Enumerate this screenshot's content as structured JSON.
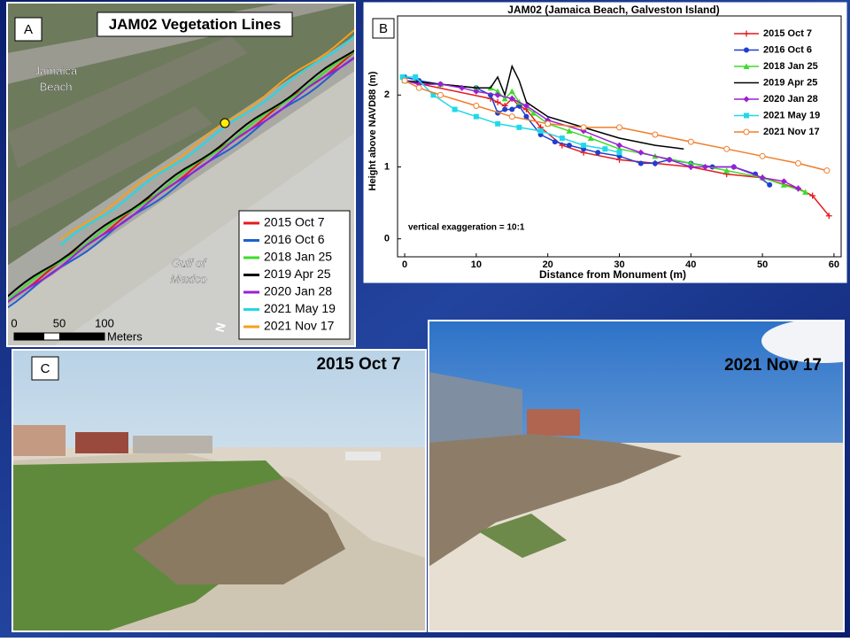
{
  "map": {
    "panel_label": "A",
    "title": "JAM02 Vegetation Lines",
    "place_label": [
      "Jamaica",
      "Beach"
    ],
    "sea_label": [
      "Gulf of",
      "Mexico"
    ],
    "scale_labels": [
      "0",
      "50",
      "100"
    ],
    "scale_unit": "Meters",
    "north": "N",
    "legend": [
      {
        "label": "2015 Oct 7",
        "color": "#e41a1c"
      },
      {
        "label": "2016 Oct 6",
        "color": "#1f5fd1"
      },
      {
        "label": "2018 Jan 25",
        "color": "#3ddc2a"
      },
      {
        "label": "2019 Apr 25",
        "color": "#000000"
      },
      {
        "label": "2020 Jan 28",
        "color": "#9b1fd6"
      },
      {
        "label": "2021 May 19",
        "color": "#22d8e8"
      },
      {
        "label": "2021 Nov 17",
        "color": "#f5a11a"
      }
    ]
  },
  "chart_data": {
    "type": "line",
    "panel_label": "B",
    "title": "JAM02 (Jamaica Beach, Galveston Island)",
    "x_label": "Distance from Monument (m)",
    "y_label": "Height above NAVD88 (m)",
    "annotation": "vertical exaggeration = 10:1",
    "xlim": [
      -1,
      61
    ],
    "ylim": [
      -0.25,
      3.1
    ],
    "xticks": [
      0,
      10,
      20,
      30,
      40,
      50,
      60
    ],
    "yticks": [
      0,
      1,
      2
    ],
    "series": [
      {
        "name": "2015 Oct 7",
        "color": "#e41a1c",
        "marker": "plus",
        "x": [
          0,
          12,
          13,
          14,
          15,
          16,
          17,
          19,
          22,
          25,
          30,
          35,
          40,
          45,
          50,
          55,
          57,
          59.3
        ],
        "values": [
          2.2,
          1.95,
          1.9,
          1.85,
          1.95,
          1.85,
          1.8,
          1.55,
          1.3,
          1.2,
          1.1,
          1.05,
          1.0,
          0.9,
          0.85,
          0.7,
          0.6,
          0.32
        ]
      },
      {
        "name": "2016 Oct 6",
        "color": "#1f3fd1",
        "marker": "circle",
        "x": [
          0,
          2,
          5,
          10,
          12,
          13,
          14,
          15,
          16,
          17,
          19,
          21,
          23,
          25,
          27,
          30,
          33,
          35,
          37,
          40,
          43,
          46,
          49,
          51
        ],
        "values": [
          2.25,
          2.2,
          2.15,
          2.1,
          2.0,
          1.75,
          1.8,
          1.8,
          1.85,
          1.7,
          1.45,
          1.35,
          1.3,
          1.25,
          1.2,
          1.15,
          1.05,
          1.05,
          1.1,
          1.05,
          1.0,
          1.0,
          0.9,
          0.75
        ]
      },
      {
        "name": "2018 Jan 25",
        "color": "#3ddc2a",
        "marker": "triangle",
        "x": [
          0,
          5,
          10,
          12,
          13,
          14,
          15,
          16,
          18,
          20,
          23,
          26,
          30,
          35,
          40,
          45,
          50,
          53,
          56
        ],
        "values": [
          2.2,
          2.15,
          2.1,
          2.1,
          2.05,
          1.95,
          2.05,
          1.9,
          1.75,
          1.6,
          1.5,
          1.4,
          1.25,
          1.15,
          1.05,
          0.95,
          0.85,
          0.75,
          0.65
        ]
      },
      {
        "name": "2019 Apr 25",
        "color": "#000000",
        "marker": "none",
        "x": [
          0,
          5,
          10,
          12,
          13,
          14,
          15,
          16,
          17,
          20,
          25,
          30,
          35,
          39
        ],
        "values": [
          2.2,
          2.15,
          2.1,
          2.1,
          2.25,
          2.0,
          2.4,
          2.2,
          1.9,
          1.7,
          1.55,
          1.4,
          1.3,
          1.25
        ]
      },
      {
        "name": "2020 Jan 28",
        "color": "#9b1fd6",
        "marker": "diamond",
        "x": [
          0,
          2,
          5,
          8,
          10,
          13,
          15,
          17,
          20,
          25,
          30,
          33,
          37,
          40,
          42,
          46,
          50,
          53,
          55
        ],
        "values": [
          2.2,
          2.15,
          2.15,
          2.1,
          2.05,
          2.0,
          1.95,
          1.85,
          1.65,
          1.5,
          1.3,
          1.2,
          1.1,
          1.0,
          1.0,
          1.0,
          0.85,
          0.8,
          0.7
        ]
      },
      {
        "name": "2021 May 19",
        "color": "#22d8e8",
        "marker": "square",
        "x": [
          -0.3,
          1.5,
          4,
          7,
          10,
          13,
          16,
          19,
          22,
          25,
          28,
          30
        ],
        "values": [
          2.25,
          2.25,
          2.0,
          1.8,
          1.7,
          1.6,
          1.55,
          1.5,
          1.4,
          1.3,
          1.25,
          1.2
        ]
      },
      {
        "name": "2021 Nov 17",
        "color": "#f07d2a",
        "marker": "open-circle",
        "x": [
          0,
          2,
          5,
          10,
          15,
          20,
          25,
          30,
          35,
          40,
          45,
          50,
          55,
          59
        ],
        "values": [
          2.2,
          2.1,
          2.0,
          1.85,
          1.7,
          1.6,
          1.55,
          1.55,
          1.45,
          1.35,
          1.25,
          1.15,
          1.05,
          0.95
        ]
      }
    ]
  },
  "photos": {
    "panel_label": "C",
    "left_caption": "2015 Oct 7",
    "right_caption": "2021 Nov 17"
  }
}
